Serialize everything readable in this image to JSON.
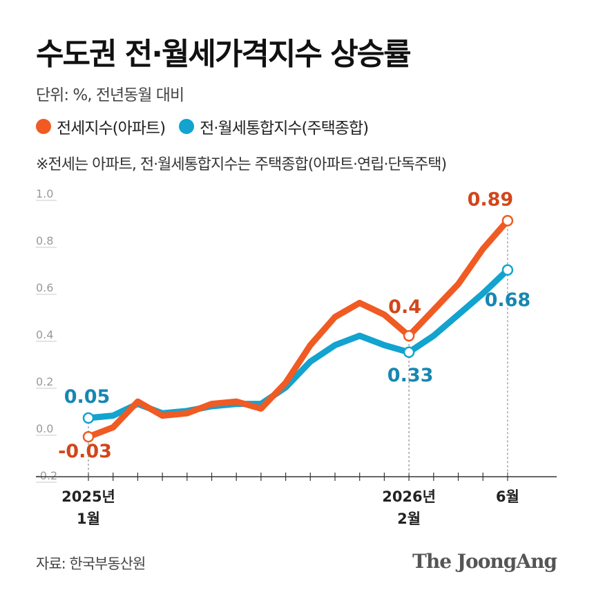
{
  "title": "수도권 전·월세가격지수 상승률",
  "subtitle": "단위: %, 전년동월 대비",
  "legend": [
    {
      "label": "전세지수(아파트)",
      "color": "#f05a23"
    },
    {
      "label": "전·월세통합지수(주택종합)",
      "color": "#12a3cf"
    }
  ],
  "note": "※전세는 아파트, 전·월세통합지수는 주택종합(아파트·연립·단독주택)",
  "source": "자료: 한국부동산원",
  "brand": "The JoongAng",
  "chart_data": {
    "type": "line",
    "ylim": [
      -0.2,
      1.0
    ],
    "yticks": [
      "1.0",
      "0.8",
      "0.6",
      "0.4",
      "0.2",
      "0.0",
      "-0.2"
    ],
    "ytick_values": [
      1.0,
      0.8,
      0.6,
      0.4,
      0.2,
      0.0,
      -0.2
    ],
    "x": [
      "2025-01",
      "2025-02",
      "2025-03",
      "2025-04",
      "2025-05",
      "2025-06",
      "2025-07",
      "2025-08",
      "2025-09",
      "2025-10",
      "2025-11",
      "2025-12",
      "2026-01",
      "2026-02",
      "2026-03",
      "2026-04",
      "2026-05",
      "2026-06"
    ],
    "xticklabels": [
      {
        "index": 0,
        "line1": "2025년",
        "line2": "1월"
      },
      {
        "index": 13,
        "line1": "2026년",
        "line2": "2월"
      },
      {
        "index": 17,
        "line1": "6월",
        "line2": ""
      }
    ],
    "series": [
      {
        "name": "전세지수(아파트)",
        "color": "#f05a23",
        "label_color": "#d2461a",
        "values": [
          -0.03,
          0.01,
          0.12,
          0.06,
          0.07,
          0.11,
          0.12,
          0.09,
          0.2,
          0.36,
          0.48,
          0.54,
          0.49,
          0.4,
          0.51,
          0.62,
          0.77,
          0.89
        ],
        "labels": [
          {
            "index": 0,
            "text": "-0.03"
          },
          {
            "index": 13,
            "text": "0.4"
          },
          {
            "index": 17,
            "text": "0.89"
          }
        ]
      },
      {
        "name": "전·월세통합지수(주택종합)",
        "color": "#12a3cf",
        "label_color": "#1687b3",
        "values": [
          0.05,
          0.06,
          0.11,
          0.07,
          0.08,
          0.1,
          0.11,
          0.11,
          0.18,
          0.29,
          0.36,
          0.4,
          0.36,
          0.33,
          0.4,
          0.49,
          0.58,
          0.68
        ],
        "labels": [
          {
            "index": 0,
            "text": "0.05"
          },
          {
            "index": 13,
            "text": "0.33"
          },
          {
            "index": 17,
            "text": "0.68"
          }
        ]
      }
    ]
  }
}
